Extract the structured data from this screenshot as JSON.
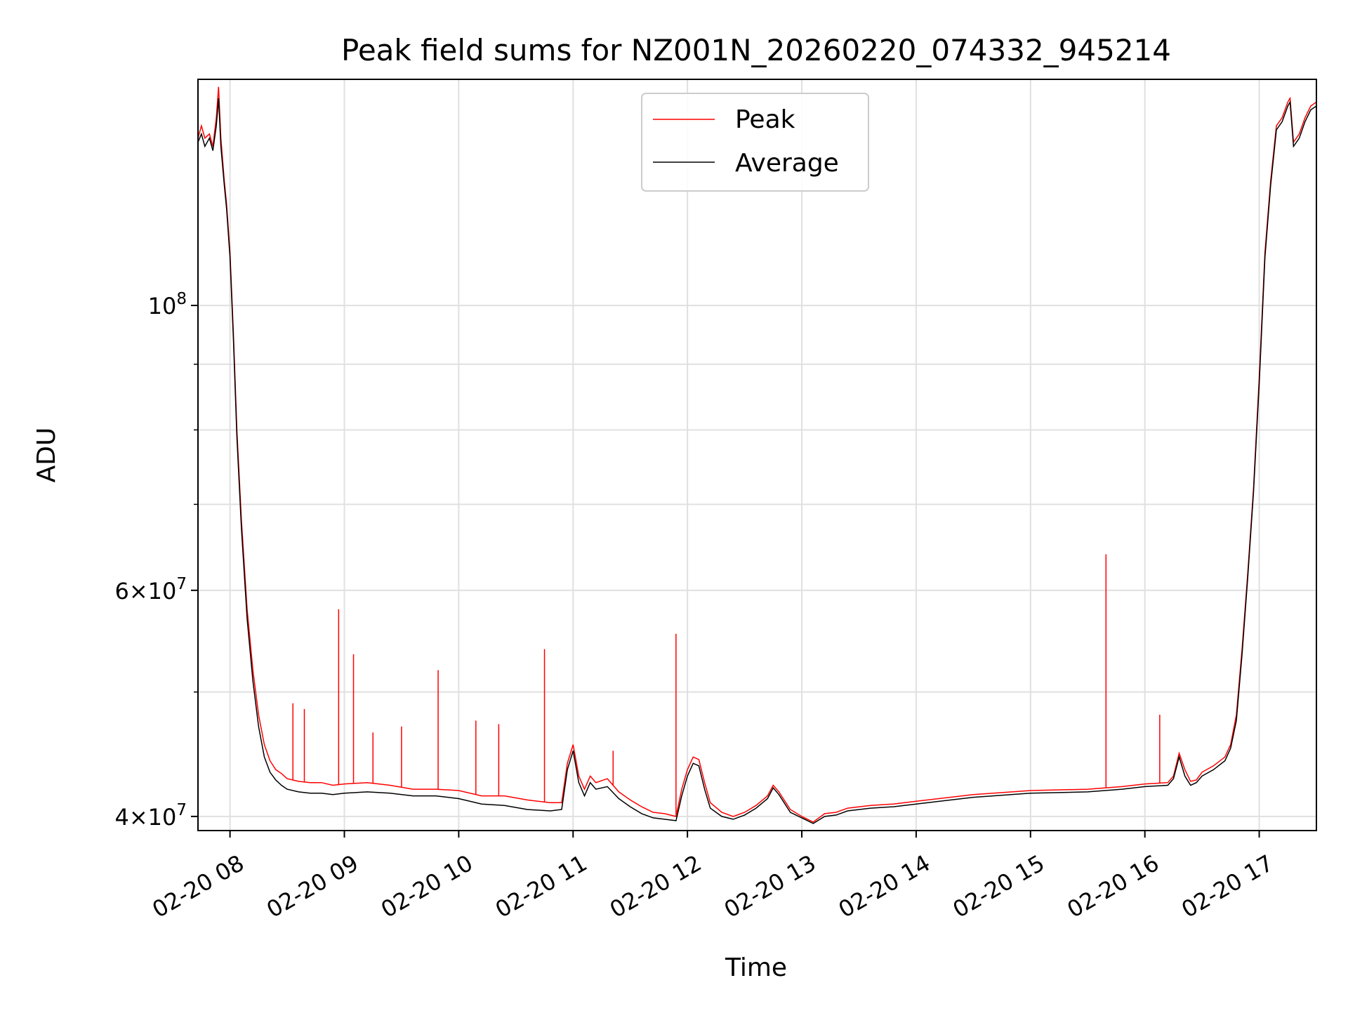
{
  "chart_data": {
    "type": "line",
    "title": "Peak field sums for NZ001N_20260220_074332_945214",
    "xlabel": "Time",
    "ylabel": "ADU",
    "yscale": "log",
    "ylim": [
      39000000,
      150000000
    ],
    "xlim_hours": [
      7.72,
      17.5
    ],
    "grid": true,
    "legend_position": "upper center",
    "x_tick_hours": [
      8,
      9,
      10,
      11,
      12,
      13,
      14,
      15,
      16,
      17
    ],
    "x_tick_labels": [
      "02-20 08",
      "02-20 09",
      "02-20 10",
      "02-20 11",
      "02-20 12",
      "02-20 13",
      "02-20 14",
      "02-20 15",
      "02-20 16",
      "02-20 17"
    ],
    "y_major_ticks": [
      {
        "value": 100000000,
        "base": "10",
        "exp": "8"
      },
      {
        "value": 60000000,
        "base": "6×10",
        "exp": "7"
      },
      {
        "value": 40000000,
        "base": "4×10",
        "exp": "7"
      }
    ],
    "y_minor_ticks": [
      50000000,
      70000000,
      80000000,
      90000000
    ],
    "series": [
      {
        "name": "Peak",
        "color": "#ff0000",
        "hours": [
          7.72,
          7.75,
          7.78,
          7.82,
          7.85,
          7.88,
          7.9,
          7.92,
          7.95,
          7.97,
          8.0,
          8.03,
          8.06,
          8.1,
          8.15,
          8.2,
          8.25,
          8.3,
          8.35,
          8.4,
          8.45,
          8.5,
          8.6,
          8.7,
          8.8,
          8.9,
          9.0,
          9.2,
          9.4,
          9.6,
          9.8,
          10.0,
          10.2,
          10.4,
          10.6,
          10.8,
          10.9,
          10.95,
          11.0,
          11.05,
          11.1,
          11.15,
          11.2,
          11.3,
          11.4,
          11.5,
          11.6,
          11.7,
          11.8,
          11.9,
          11.95,
          12.0,
          12.05,
          12.1,
          12.15,
          12.2,
          12.3,
          12.4,
          12.5,
          12.6,
          12.7,
          12.75,
          12.8,
          12.9,
          13.0,
          13.1,
          13.2,
          13.3,
          13.4,
          13.6,
          13.8,
          14.0,
          14.5,
          15.0,
          15.5,
          15.8,
          16.0,
          16.2,
          16.25,
          16.3,
          16.35,
          16.4,
          16.45,
          16.5,
          16.6,
          16.7,
          16.75,
          16.8,
          16.85,
          16.9,
          16.95,
          17.0,
          17.05,
          17.1,
          17.15,
          17.2,
          17.25,
          17.27,
          17.3,
          17.35,
          17.4,
          17.45,
          17.5
        ],
        "values": [
          135000000,
          138000000,
          135000000,
          136000000,
          133000000,
          140000000,
          148000000,
          135000000,
          125000000,
          120000000,
          110000000,
          95000000,
          80000000,
          68000000,
          58000000,
          52000000,
          48000000,
          45500000,
          44200000,
          43500000,
          43200000,
          42800000,
          42600000,
          42500000,
          42500000,
          42300000,
          42400000,
          42500000,
          42300000,
          42000000,
          42000000,
          41900000,
          41500000,
          41500000,
          41200000,
          41000000,
          41000000,
          44000000,
          45500000,
          43000000,
          42000000,
          43000000,
          42500000,
          42800000,
          41800000,
          41200000,
          40700000,
          40300000,
          40200000,
          40000000,
          42000000,
          43500000,
          44500000,
          44300000,
          42500000,
          41000000,
          40300000,
          40000000,
          40300000,
          40800000,
          41500000,
          42300000,
          41800000,
          40500000,
          40000000,
          39600000,
          40200000,
          40300000,
          40600000,
          40800000,
          40900000,
          41100000,
          41600000,
          41900000,
          42000000,
          42200000,
          42400000,
          42500000,
          43000000,
          44800000,
          43500000,
          42600000,
          42700000,
          43300000,
          43800000,
          44500000,
          45500000,
          48000000,
          54000000,
          62000000,
          72000000,
          88000000,
          110000000,
          125000000,
          138000000,
          140000000,
          144000000,
          145000000,
          134000000,
          136000000,
          140000000,
          143000000,
          144000000
        ],
        "spikes": [
          {
            "hour": 8.95,
            "value": 58000000
          },
          {
            "hour": 9.08,
            "value": 53500000
          },
          {
            "hour": 9.82,
            "value": 52000000
          },
          {
            "hour": 10.75,
            "value": 54000000
          },
          {
            "hour": 11.9,
            "value": 55500000
          },
          {
            "hour": 15.66,
            "value": 64000000
          },
          {
            "hour": 16.13,
            "value": 48000000
          },
          {
            "hour": 8.55,
            "value": 49000000
          },
          {
            "hour": 8.65,
            "value": 48500000
          },
          {
            "hour": 9.25,
            "value": 46500000
          },
          {
            "hour": 9.5,
            "value": 47000000
          },
          {
            "hour": 10.15,
            "value": 47500000
          },
          {
            "hour": 10.35,
            "value": 47200000
          },
          {
            "hour": 11.35,
            "value": 45000000
          }
        ]
      },
      {
        "name": "Average",
        "color": "#000000",
        "hours": [
          7.72,
          7.75,
          7.78,
          7.82,
          7.85,
          7.88,
          7.9,
          7.92,
          7.95,
          7.97,
          8.0,
          8.03,
          8.06,
          8.1,
          8.15,
          8.2,
          8.25,
          8.3,
          8.35,
          8.4,
          8.45,
          8.5,
          8.6,
          8.7,
          8.8,
          8.9,
          9.0,
          9.2,
          9.4,
          9.6,
          9.8,
          10.0,
          10.2,
          10.4,
          10.6,
          10.8,
          10.9,
          10.95,
          11.0,
          11.05,
          11.1,
          11.15,
          11.2,
          11.3,
          11.4,
          11.5,
          11.6,
          11.7,
          11.8,
          11.9,
          11.95,
          12.0,
          12.05,
          12.1,
          12.15,
          12.2,
          12.3,
          12.4,
          12.5,
          12.6,
          12.7,
          12.75,
          12.8,
          12.9,
          13.0,
          13.1,
          13.2,
          13.3,
          13.4,
          13.6,
          13.8,
          14.0,
          14.5,
          15.0,
          15.5,
          15.8,
          16.0,
          16.2,
          16.25,
          16.3,
          16.35,
          16.4,
          16.45,
          16.5,
          16.6,
          16.7,
          16.75,
          16.8,
          16.85,
          16.9,
          16.95,
          17.0,
          17.05,
          17.1,
          17.15,
          17.2,
          17.25,
          17.27,
          17.3,
          17.35,
          17.4,
          17.45,
          17.5
        ],
        "values": [
          134000000,
          136000000,
          133000000,
          135000000,
          132000000,
          138000000,
          145000000,
          133000000,
          124000000,
          119000000,
          109000000,
          94000000,
          79000000,
          67000000,
          57000000,
          51000000,
          47000000,
          44500000,
          43300000,
          42700000,
          42300000,
          42000000,
          41800000,
          41700000,
          41700000,
          41600000,
          41700000,
          41800000,
          41700000,
          41500000,
          41500000,
          41300000,
          40900000,
          40800000,
          40500000,
          40400000,
          40500000,
          43500000,
          45000000,
          42500000,
          41500000,
          42500000,
          42000000,
          42200000,
          41300000,
          40700000,
          40200000,
          39900000,
          39800000,
          39700000,
          41500000,
          43000000,
          44000000,
          43800000,
          42000000,
          40600000,
          40000000,
          39800000,
          40100000,
          40600000,
          41300000,
          42100000,
          41600000,
          40300000,
          39900000,
          39500000,
          40000000,
          40100000,
          40400000,
          40600000,
          40700000,
          40900000,
          41400000,
          41700000,
          41800000,
          42000000,
          42200000,
          42300000,
          42800000,
          44500000,
          43000000,
          42300000,
          42500000,
          43000000,
          43500000,
          44200000,
          45200000,
          47500000,
          53500000,
          61500000,
          71500000,
          87000000,
          109000000,
          124000000,
          137000000,
          139000000,
          143000000,
          144000000,
          133000000,
          135000000,
          139000000,
          142000000,
          143000000
        ]
      }
    ]
  }
}
